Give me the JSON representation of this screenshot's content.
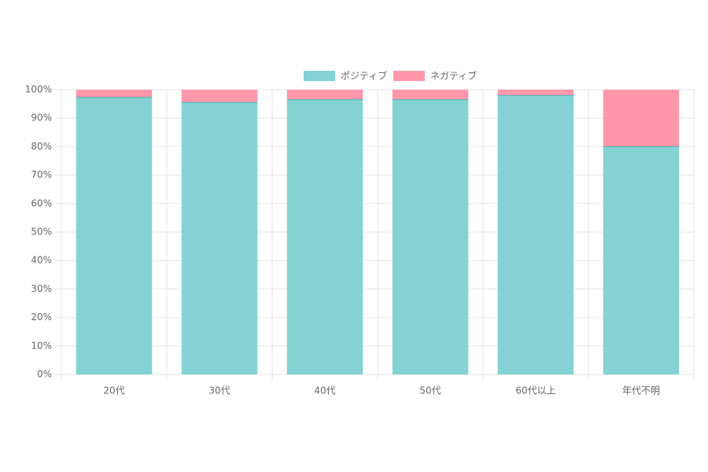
{
  "chart_data": {
    "type": "stacked_bar",
    "categories": [
      "20代",
      "30代",
      "40代",
      "50代",
      "60代以上",
      "年代不明"
    ],
    "series": [
      {
        "name": "ポジティブ",
        "color": "#84d2d3",
        "values": [
          97.3,
          95.5,
          96.5,
          96.5,
          98,
          80
        ]
      },
      {
        "name": "ネガティブ",
        "color": "#ff97ab",
        "values": [
          2.7,
          4.5,
          3.5,
          3.5,
          2,
          20
        ]
      }
    ],
    "ylim": [
      0,
      100
    ],
    "yticks": [
      {
        "value": 0,
        "label": "0%"
      },
      {
        "value": 10,
        "label": "10%"
      },
      {
        "value": 20,
        "label": "20%"
      },
      {
        "value": 30,
        "label": "30%"
      },
      {
        "value": 40,
        "label": "40%"
      },
      {
        "value": 50,
        "label": "50%"
      },
      {
        "value": 60,
        "label": "60%"
      },
      {
        "value": 70,
        "label": "70%"
      },
      {
        "value": 80,
        "label": "80%"
      },
      {
        "value": 90,
        "label": "90%"
      },
      {
        "value": 100,
        "label": "100%"
      }
    ],
    "grid": true
  }
}
